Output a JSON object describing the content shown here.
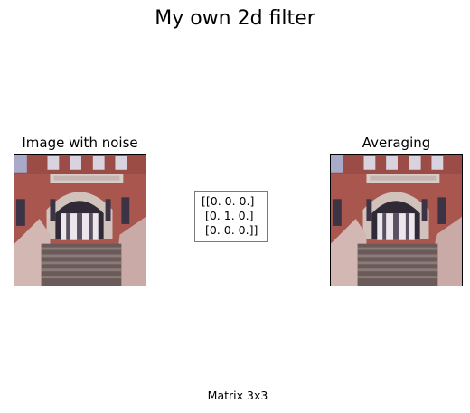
{
  "figure": {
    "title": "My own 2d filter"
  },
  "left_panel": {
    "title": "Image with noise"
  },
  "right_panel": {
    "title": "Averaging"
  },
  "matrix": {
    "rows": [
      "[[0. 0. 0.]",
      " [0. 1. 0.]",
      " [0. 0. 0.]]"
    ]
  },
  "xlabel": "Matrix 3x3",
  "colors": {
    "brick": "#a8564e",
    "stone": "#c9b8b0",
    "stairs": "#6a5a5a",
    "sky_window": "#a9aac9"
  }
}
